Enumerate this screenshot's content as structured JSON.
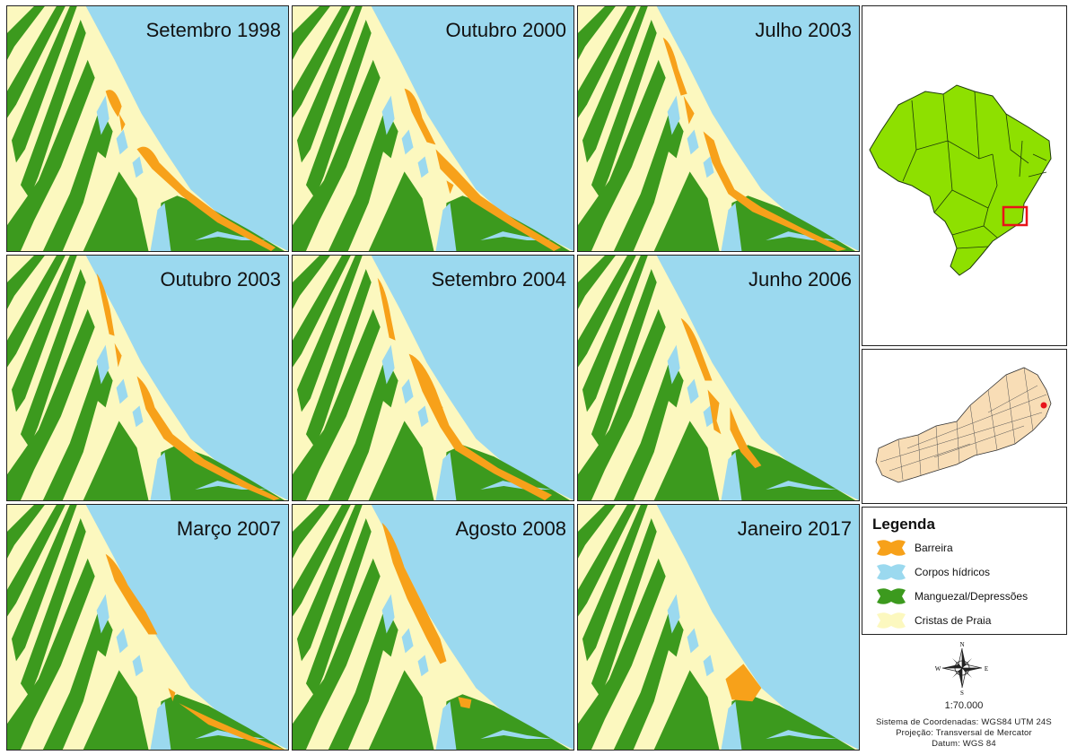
{
  "panels": [
    {
      "title": "Setembro 1998"
    },
    {
      "title": "Outubro 2000"
    },
    {
      "title": "Julho 2003"
    },
    {
      "title": "Outubro 2003"
    },
    {
      "title": "Setembro 2004"
    },
    {
      "title": "Junho 2006"
    },
    {
      "title": "Março 2007"
    },
    {
      "title": "Agosto 2008"
    },
    {
      "title": "Janeiro 2017"
    }
  ],
  "legend": {
    "title": "Legenda",
    "items": [
      {
        "label": "Barreira",
        "color": "#f7a11a"
      },
      {
        "label": "Corpos hídricos",
        "color": "#9bd9ef"
      },
      {
        "label": "Manguezal/Depressões",
        "color": "#3c9a1e"
      },
      {
        "label": "Cristas de Praia",
        "color": "#fcf8bf"
      }
    ]
  },
  "colors": {
    "sea": "#9bd9ef",
    "ridge": "#fcf8bf",
    "mangrove": "#3c9a1e",
    "barrier": "#f7a11a",
    "brazil": "#8ee000",
    "rj_state": "#f8ddb6",
    "highlight": "#e8131a"
  },
  "compass": {
    "n": "N",
    "s": "S",
    "e": "E",
    "w": "W"
  },
  "scale": "1:70.000",
  "coord_system": "Sistema de Coordenadas: WGS84 UTM 24S",
  "projection": "Projeção: Transversal de Mercator",
  "datum": "Datum: WGS 84"
}
